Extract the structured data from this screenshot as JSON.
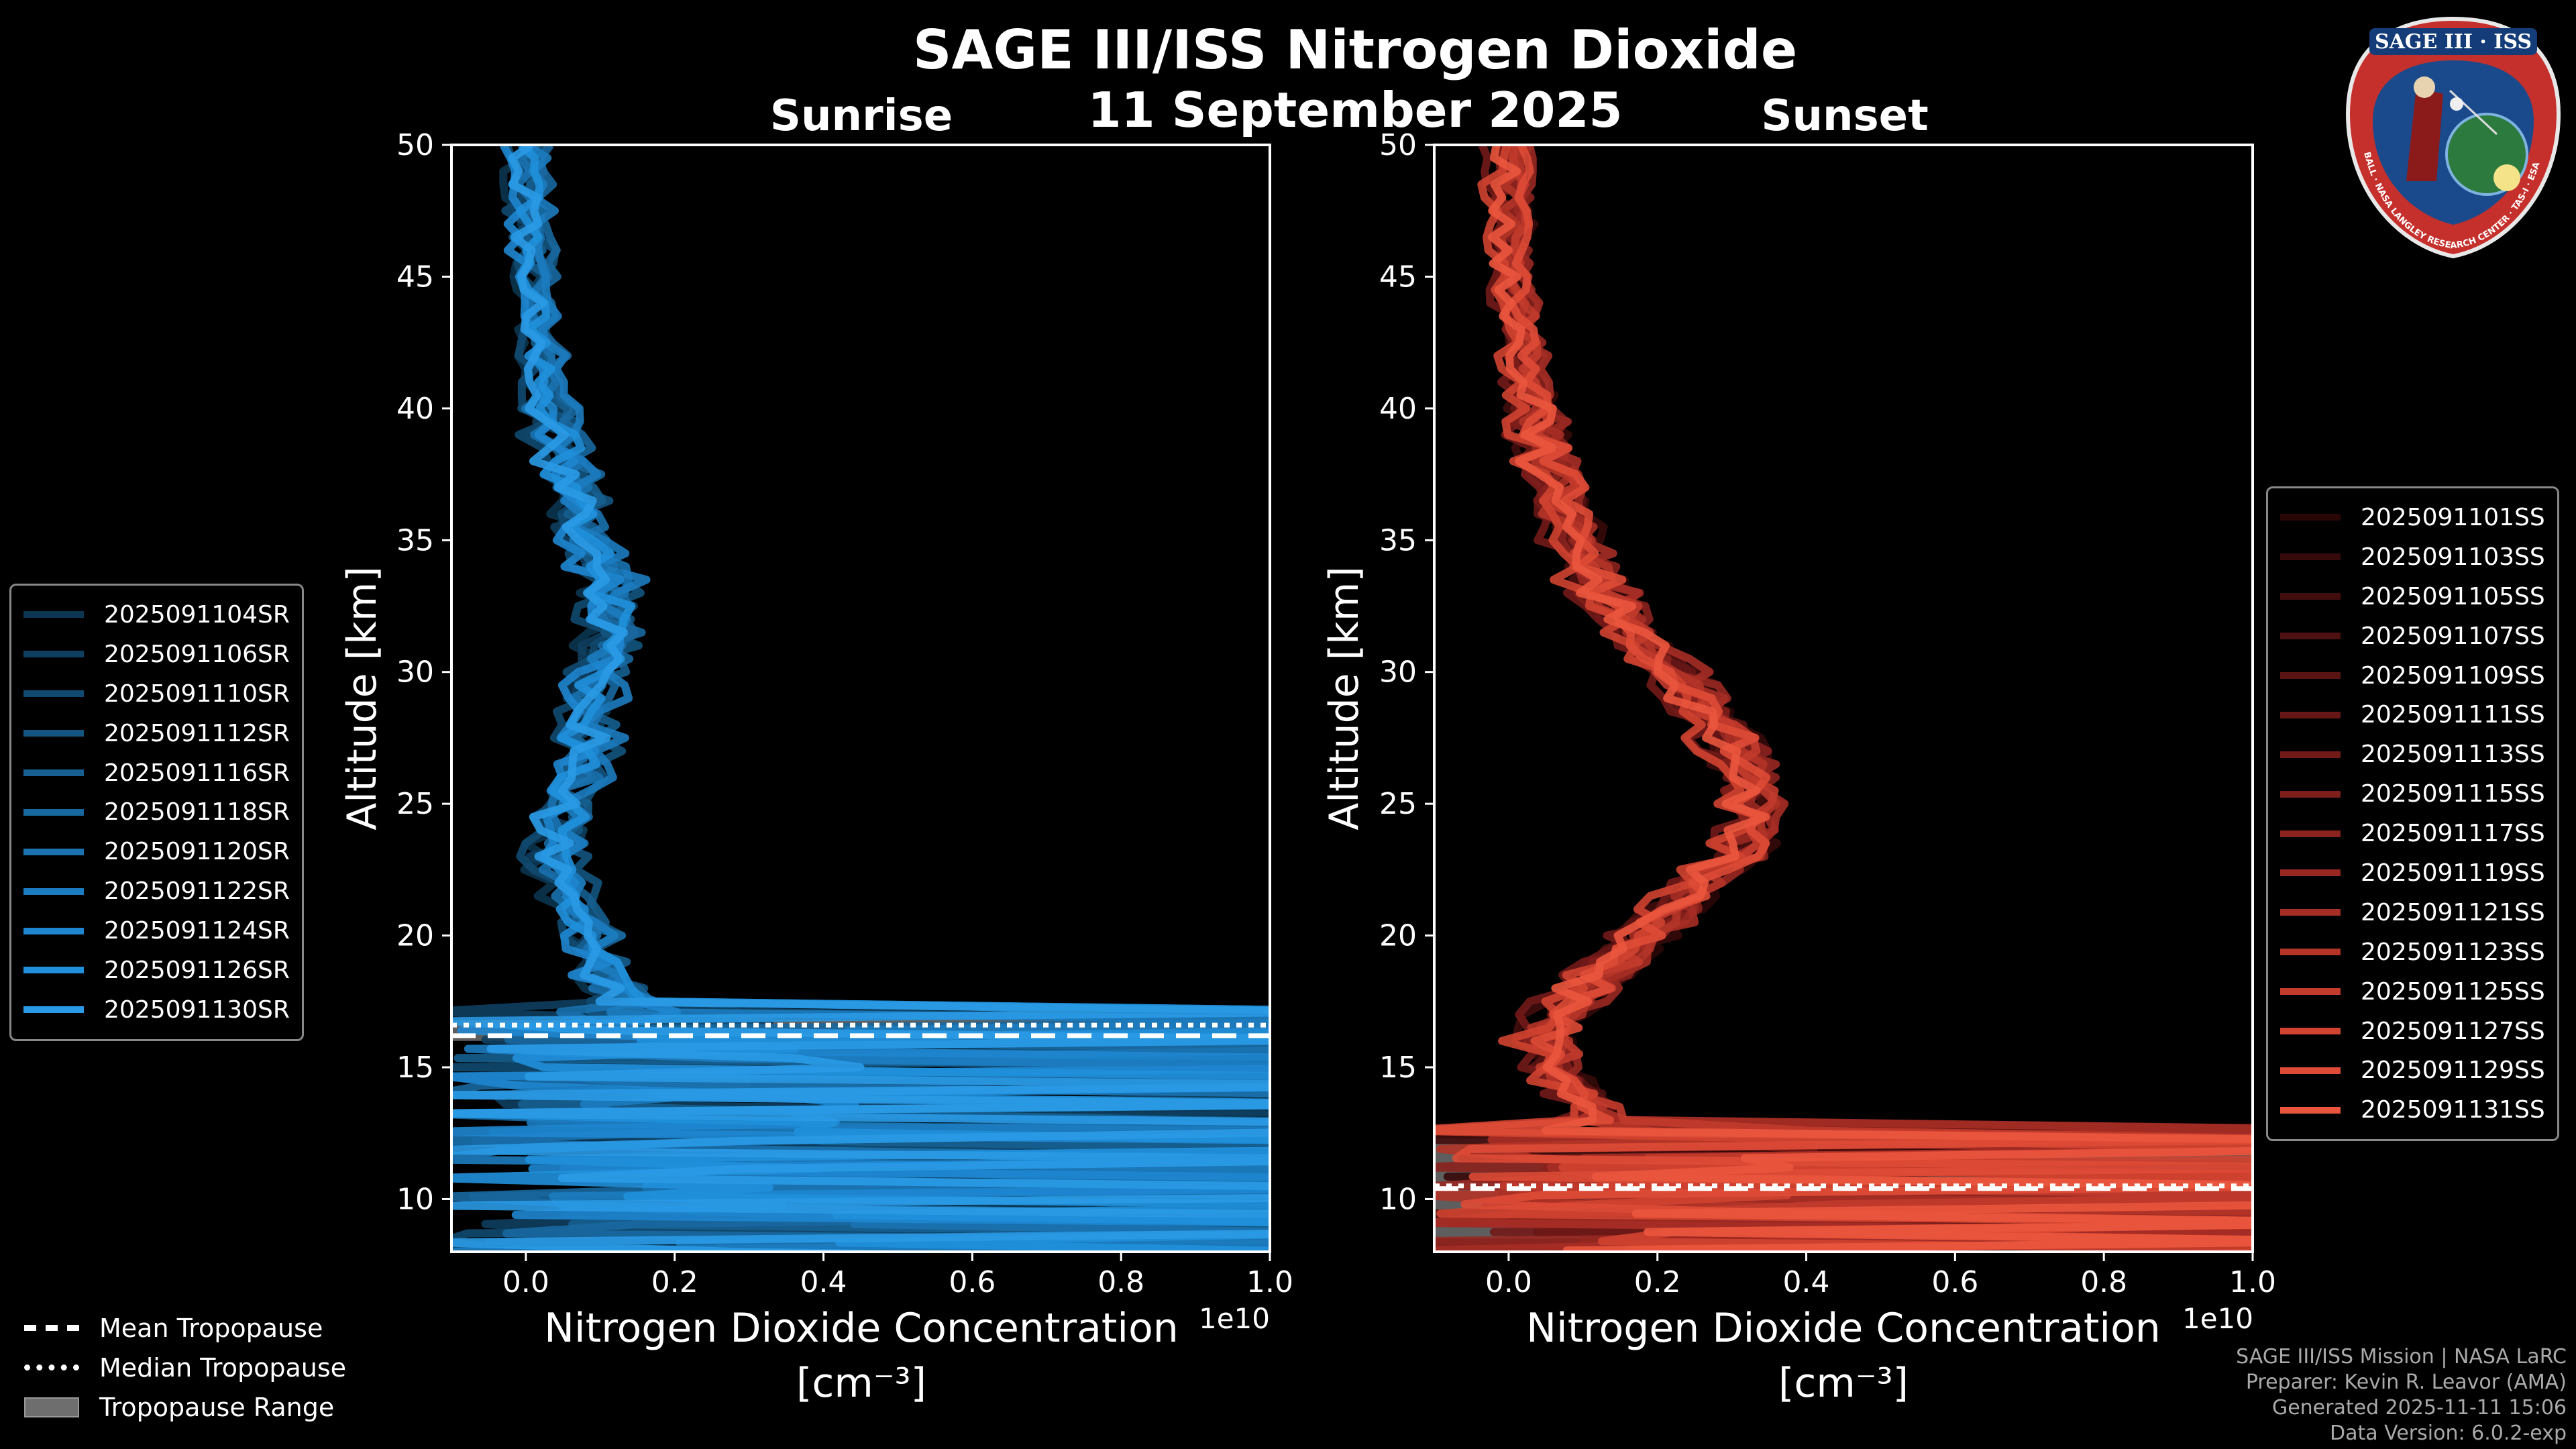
{
  "title": "SAGE III/ISS Nitrogen Dioxide",
  "date": "11 September 2025",
  "logo": {
    "text": "SAGE III · ISS",
    "ring_text": "BALL · NASA LANGLEY RESEARCH CENTER · TAS-I · ESA"
  },
  "credits": {
    "line1": "SAGE III/ISS Mission | NASA LaRC",
    "line2": "Preparer: Kevin R. Leavor (AMA)",
    "line3": "Generated 2025-11-11 15:06",
    "line4": "Data Version: 6.0.2-exp"
  },
  "bottom_legend": {
    "mean": "Mean Tropopause",
    "median": "Median Tropopause",
    "range": "Tropopause Range"
  },
  "chart_data": [
    {
      "type": "line",
      "title": "Sunrise",
      "xlabel": "Nitrogen Dioxide Concentration",
      "xunit": "[cm⁻³]",
      "ylabel": "Altitude [km]",
      "x_offset_label": "1e10",
      "xlim": [
        -0.1,
        1.0
      ],
      "ylim": [
        8,
        50
      ],
      "x_ticks": [
        0.0,
        0.2,
        0.4,
        0.6,
        0.8,
        1.0
      ],
      "x_tick_labels": [
        "0.0",
        "0.2",
        "0.4",
        "0.6",
        "0.8",
        "1.0"
      ],
      "y_ticks": [
        10,
        15,
        20,
        25,
        30,
        35,
        40,
        45,
        50
      ],
      "y_tick_labels": [
        "10",
        "15",
        "20",
        "25",
        "30",
        "35",
        "40",
        "45",
        "50"
      ],
      "tropopause": {
        "mean": 16.2,
        "median": 16.6,
        "range": [
          16.0,
          16.8
        ]
      },
      "series_names": [
        "2025091104SR",
        "2025091106SR",
        "2025091110SR",
        "2025091112SR",
        "2025091116SR",
        "2025091118SR",
        "2025091120SR",
        "2025091122SR",
        "2025091124SR",
        "2025091126SR",
        "2025091130SR"
      ],
      "series_colors": [
        "#0b3550",
        "#0e3f60",
        "#114a70",
        "#135480",
        "#165f90",
        "#1868a0",
        "#1a72b0",
        "#1c7cc0",
        "#1e86d0",
        "#2090dc",
        "#2a9ae6"
      ],
      "profile": {
        "alt": [
          50,
          45,
          40,
          35,
          33,
          30,
          27,
          25,
          23,
          21,
          20,
          18,
          17,
          16
        ],
        "conc": [
          0.0,
          0.01,
          0.03,
          0.08,
          0.12,
          0.1,
          0.08,
          0.05,
          0.04,
          0.06,
          0.08,
          0.12,
          0.15,
          0.05
        ]
      }
    },
    {
      "type": "line",
      "title": "Sunset",
      "xlabel": "Nitrogen Dioxide Concentration",
      "xunit": "[cm⁻³]",
      "ylabel": "Altitude [km]",
      "x_offset_label": "1e10",
      "xlim": [
        -0.1,
        1.0
      ],
      "ylim": [
        8,
        50
      ],
      "x_ticks": [
        0.0,
        0.2,
        0.4,
        0.6,
        0.8,
        1.0
      ],
      "x_tick_labels": [
        "0.0",
        "0.2",
        "0.4",
        "0.6",
        "0.8",
        "1.0"
      ],
      "y_ticks": [
        10,
        15,
        20,
        25,
        30,
        35,
        40,
        45,
        50
      ],
      "y_tick_labels": [
        "10",
        "15",
        "20",
        "25",
        "30",
        "35",
        "40",
        "45",
        "50"
      ],
      "tropopause": {
        "mean": 10.4,
        "median": 10.5,
        "range": [
          8.5,
          12.3
        ]
      },
      "series_names": [
        "2025091101SS",
        "2025091103SS",
        "2025091105SS",
        "2025091107SS",
        "2025091109SS",
        "2025091111SS",
        "2025091113SS",
        "2025091115SS",
        "2025091117SS",
        "2025091119SS",
        "2025091121SS",
        "2025091123SS",
        "2025091125SS",
        "2025091127SS",
        "2025091129SS",
        "2025091131SS"
      ],
      "series_colors": [
        "#2a0707",
        "#360a0a",
        "#420d0d",
        "#4e1010",
        "#5a1313",
        "#661616",
        "#721a18",
        "#7e1e1b",
        "#8a221e",
        "#982821",
        "#a62e25",
        "#b43428",
        "#c23b2c",
        "#d04330",
        "#de4b36",
        "#ea553d"
      ],
      "profile": {
        "alt": [
          50,
          45,
          40,
          35,
          32,
          30,
          28,
          26,
          24,
          23,
          22,
          20,
          18,
          17,
          16,
          15,
          14,
          13,
          12
        ],
        "conc": [
          0.0,
          0.0,
          0.03,
          0.08,
          0.15,
          0.22,
          0.28,
          0.32,
          0.33,
          0.3,
          0.25,
          0.18,
          0.1,
          0.06,
          0.04,
          0.06,
          0.1,
          0.12,
          0.1
        ]
      }
    }
  ]
}
